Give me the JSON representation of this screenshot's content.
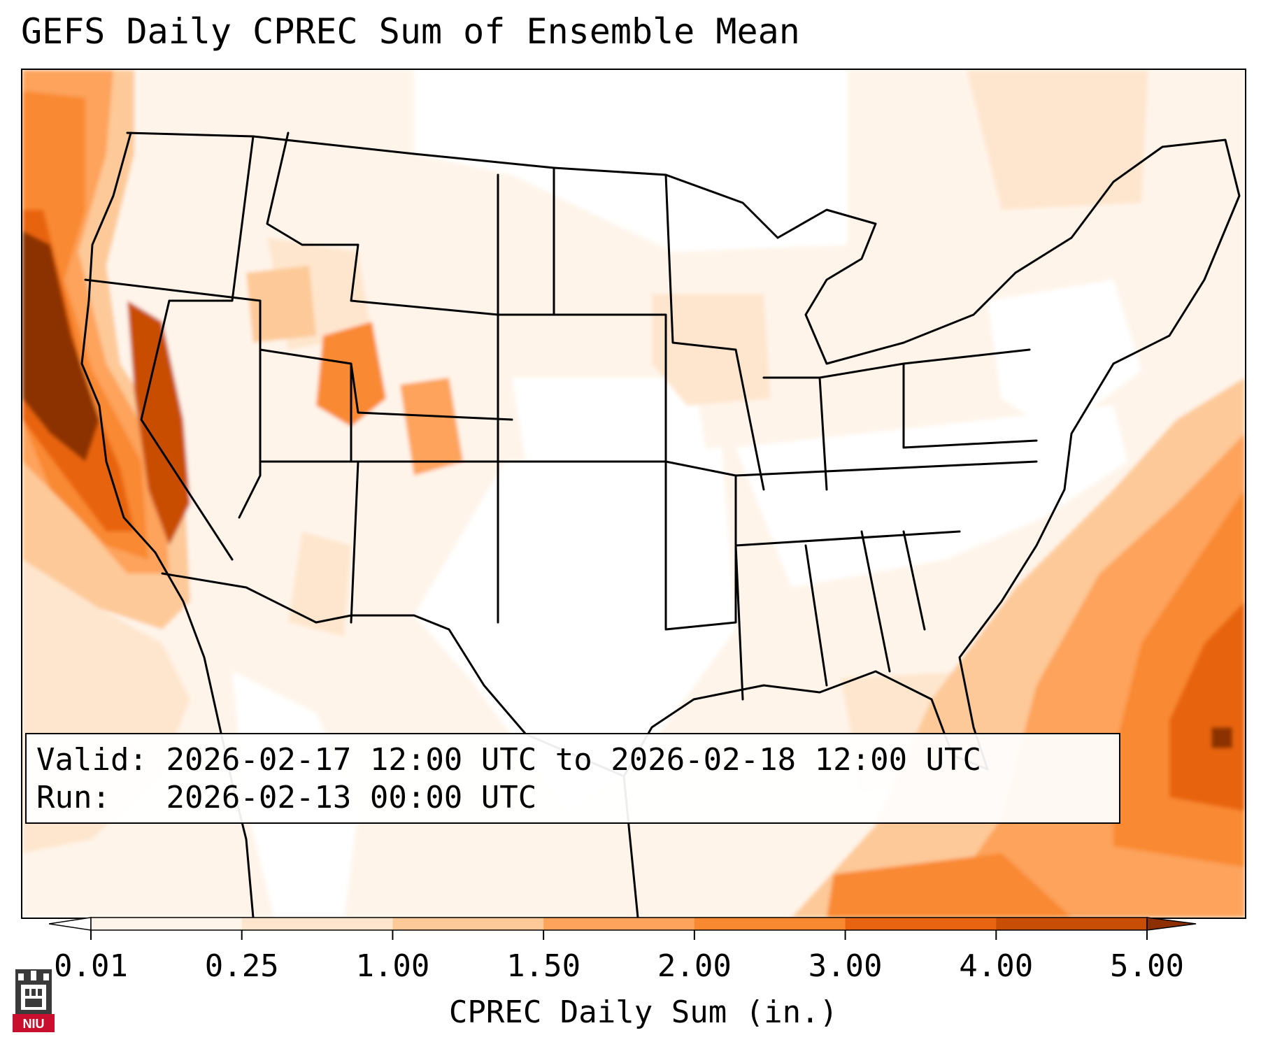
{
  "title": "GEFS Daily CPREC Sum of Ensemble Mean",
  "info": {
    "valid_label": "Valid:",
    "valid_value": "2026-02-17 12:00 UTC to 2026-02-18 12:00 UTC",
    "run_label": "Run:",
    "run_value": "2026-02-13 00:00 UTC"
  },
  "colorbar": {
    "label": "CPREC Daily Sum (in.)",
    "ticks": [
      "0.01",
      "0.25",
      "1.00",
      "1.50",
      "2.00",
      "3.00",
      "4.00",
      "5.00"
    ],
    "colors": [
      "#fff4ea",
      "#fee6ce",
      "#fdc998",
      "#fda35b",
      "#f98930",
      "#e86410",
      "#c94e05"
    ],
    "under_color": "#ffffff",
    "over_color": "#8c3003"
  },
  "logo": {
    "text": "NIU",
    "colors": {
      "red": "#c8102e",
      "dark": "#3a3a3a"
    }
  },
  "map": {
    "projection": "lambert-conformal",
    "region": "Contiguous United States",
    "boundaries": [
      "coastlines",
      "state-borders",
      "country-borders"
    ],
    "precip_max_regions": [
      "California coast",
      "Pacific Northwest coast",
      "western Atlantic east of Florida"
    ]
  }
}
